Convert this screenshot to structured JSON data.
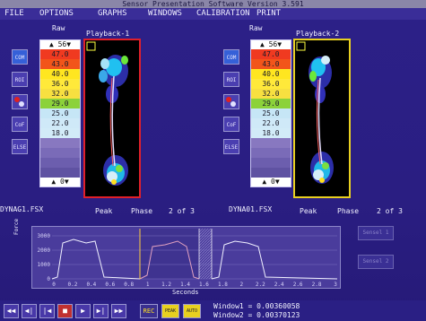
{
  "window": {
    "title": "Sensor Presentation Software  Version  3.591"
  },
  "menu": [
    "FILE",
    "OPTIONS",
    "GRAPHS",
    "WINDOWS",
    "CALIBRATION",
    "PRINT"
  ],
  "left_panel": {
    "raw_label": "Raw",
    "scale_top": "56",
    "scale_values": [
      "47.0",
      "43.0",
      "40.0",
      "36.0",
      "32.0",
      "29.0",
      "25.0",
      "22.0",
      "18.0",
      "",
      "",
      "",
      ""
    ],
    "scale_bottom": "0",
    "playback_title": "Playback-1",
    "file_label": "DYNAG1.FSX",
    "peak_label": "Peak",
    "phase_label": "Phase",
    "count_label": "2 of 3"
  },
  "right_panel": {
    "raw_label": "Raw",
    "scale_top": "56",
    "scale_values": [
      "47.0",
      "43.0",
      "40.0",
      "36.0",
      "32.0",
      "29.0",
      "25.0",
      "22.0",
      "18.0",
      "",
      "",
      "",
      ""
    ],
    "scale_bottom": "0",
    "playback_title": "Playback-2",
    "file_label": "DYNA01.FSX",
    "peak_label": "Peak",
    "phase_label": "Phase",
    "count_label": "2 of 3"
  },
  "scale_colors": [
    "#f03a20",
    "#f2551a",
    "#ffe620",
    "#ffe93a",
    "#f7e040",
    "#8cd23a",
    "#c6e6f6",
    "#cfe9f8",
    "#d2ebf8",
    "#8878c0",
    "#7a6bb8",
    "#6c5eae",
    "#5f52a2"
  ],
  "toolbar": [
    "COM",
    "ROI",
    "",
    "CoF",
    "ELSE"
  ],
  "graph": {
    "y_ticks": [
      "3000",
      "2000",
      "1000",
      "0"
    ],
    "x_ticks": [
      "0",
      "0.2",
      "0.4",
      "0.6",
      "0.8",
      "1",
      "1.2",
      "1.4",
      "1.6",
      "1.8",
      "2",
      "2.2",
      "2.4",
      "2.6",
      "2.8",
      "3"
    ],
    "x_title": "Seconds",
    "y_title": "Force"
  },
  "side_buttons": [
    "Sensel 1",
    "Sensel 2"
  ],
  "controls": {
    "buttons": [
      "◀◀",
      "◀|",
      "|◀",
      "■",
      "▶",
      "▶|",
      "▶▶"
    ],
    "rec_label": "REC",
    "peak_label": "PEAK",
    "auto_label": "AUTO",
    "window1_label": "Window1",
    "window1_value": "0.00360058",
    "window2_label": "Window2",
    "window2_value": "0.00370123"
  }
}
